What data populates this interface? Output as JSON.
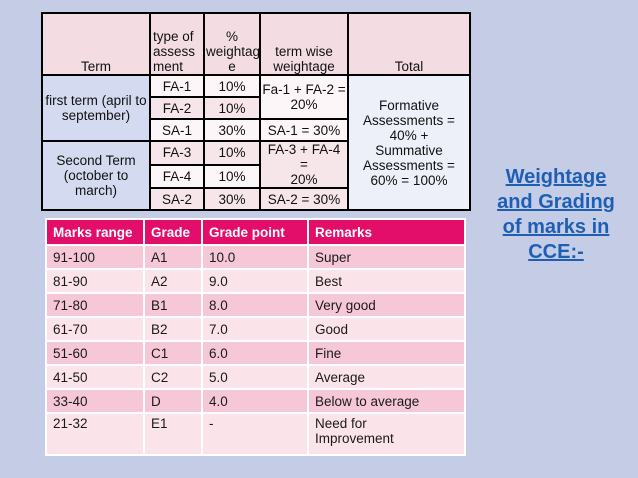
{
  "top_table": {
    "headers": {
      "term": "Term",
      "type": [
        "type of",
        "assess",
        "ment"
      ],
      "pct": [
        "%",
        "weightag",
        "e"
      ],
      "termwise": [
        "term wise",
        "weightage"
      ],
      "total": "Total"
    },
    "first_term": [
      "first term (april to",
      "september)"
    ],
    "second_term": [
      "Second Term",
      "(october to march)"
    ],
    "rows": [
      {
        "type": "FA-1",
        "pct": "10%"
      },
      {
        "type": "FA-2",
        "pct": "10%"
      },
      {
        "type": "SA-1",
        "pct": "30%"
      },
      {
        "type": "FA-3",
        "pct": "10%"
      },
      {
        "type": "FA-4",
        "pct": "10%"
      },
      {
        "type": "SA-2",
        "pct": "30%"
      }
    ],
    "termwise": {
      "fa12": [
        "Fa-1 + FA-2 =",
        "20%"
      ],
      "sa1": "SA-1 = 30%",
      "fa34": [
        "FA-3 + FA-4 =",
        "20%"
      ],
      "sa2": "SA-2 = 30%"
    },
    "total": [
      "Formative",
      "Assessments =",
      "40% +",
      "Summative",
      "Assessments =",
      "60% = 100%"
    ]
  },
  "grade_table": {
    "headers": [
      "Marks range",
      "Grade",
      "Grade point",
      "Remarks"
    ],
    "rows": [
      {
        "range": "91-100",
        "grade": "A1",
        "point": "10.0",
        "remark": "Super"
      },
      {
        "range": "81-90",
        "grade": "A2",
        "point": "9.0",
        "remark": "Best"
      },
      {
        "range": "71-80",
        "grade": "B1",
        "point": "8.0",
        "remark": "Very good"
      },
      {
        "range": "61-70",
        "grade": "B2",
        "point": "7.0",
        "remark": "Good"
      },
      {
        "range": "51-60",
        "grade": "C1",
        "point": "6.0",
        "remark": "Fine"
      },
      {
        "range": "41-50",
        "grade": "C2",
        "point": "5.0",
        "remark": "Average"
      },
      {
        "range": "33-40",
        "grade": "D",
        "point": "4.0",
        "remark": "Below to average"
      },
      {
        "range": "21-32",
        "grade": "E1",
        "point": "-",
        "remark": [
          "Need for",
          "Improvement"
        ]
      }
    ]
  },
  "side_title": [
    "Weightage",
    "and Grading",
    "of marks in",
    "CCE:-"
  ],
  "colors": {
    "background": "#c5cde6",
    "header_pink": "#e30e6a",
    "title_blue": "#1e5fb5"
  }
}
